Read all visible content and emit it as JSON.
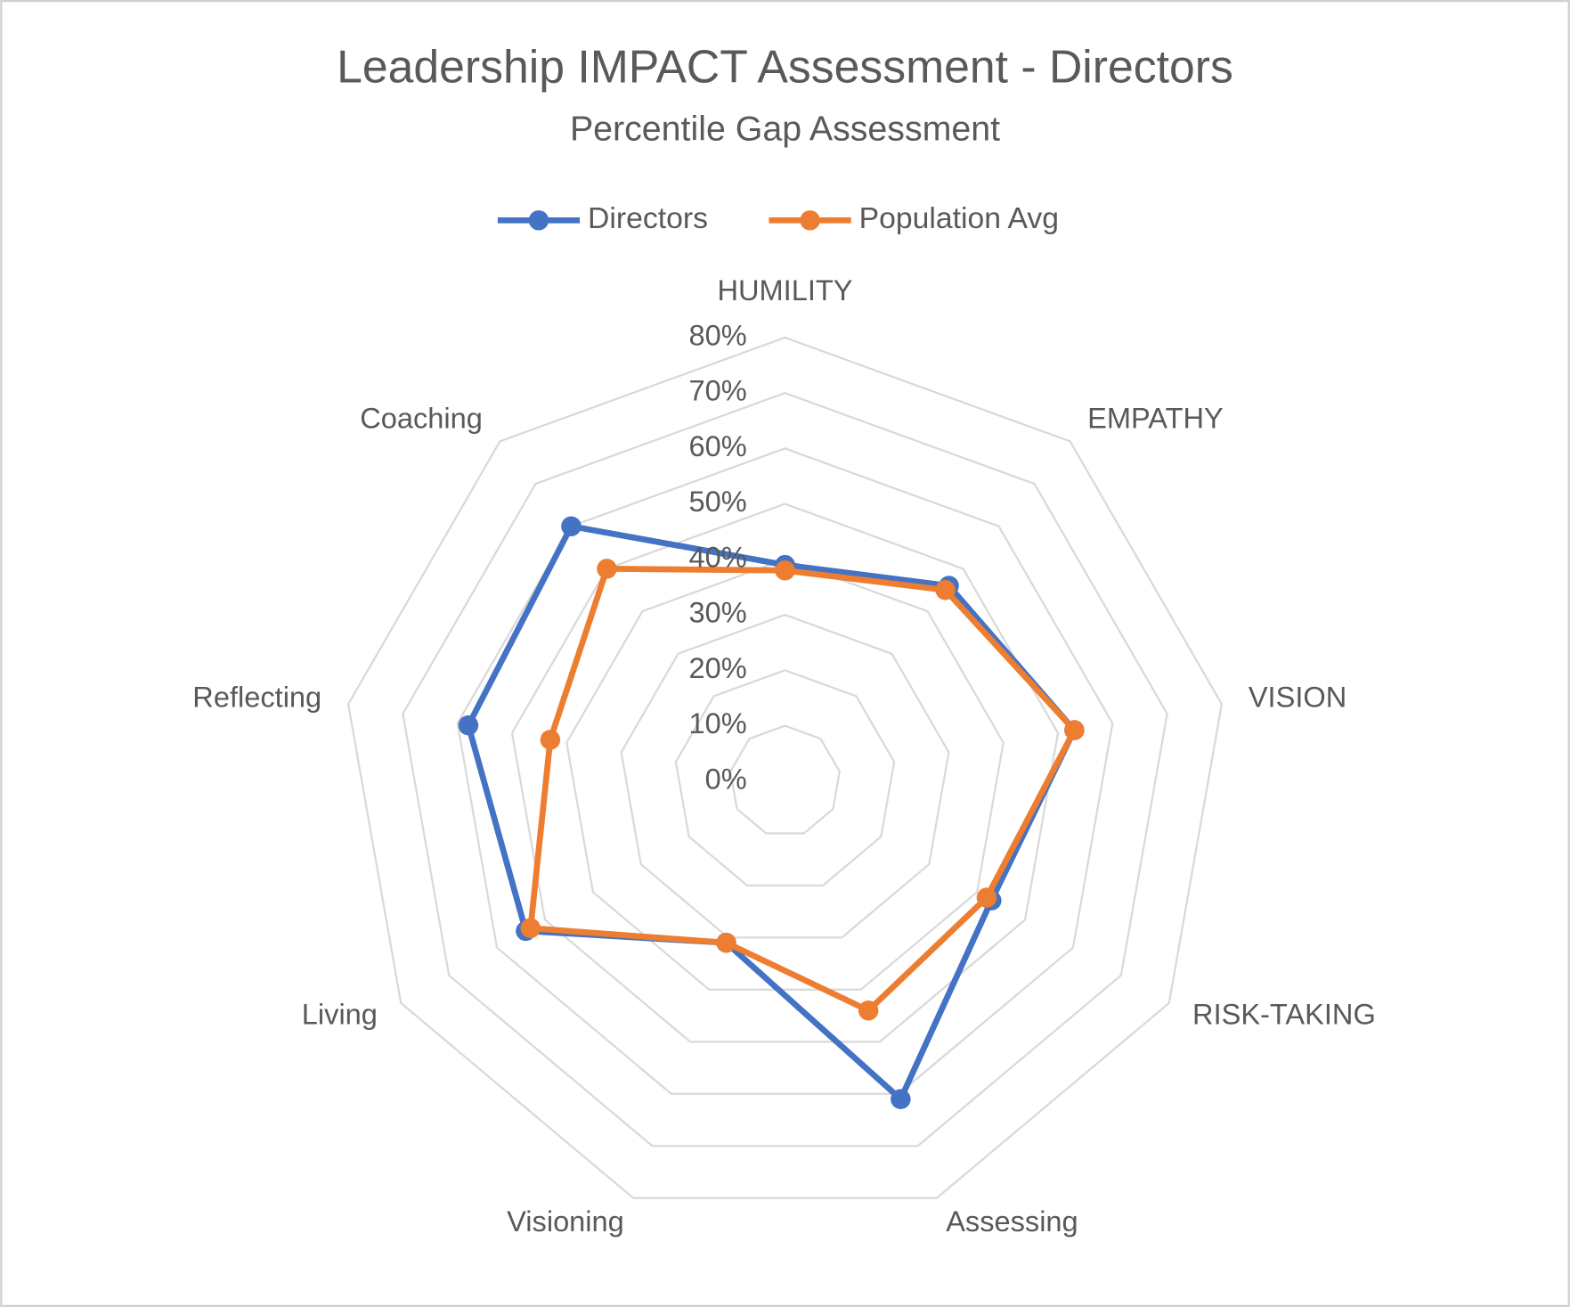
{
  "chart_data": {
    "type": "radar",
    "title": "Leadership IMPACT Assessment - Directors",
    "subtitle": "Percentile Gap Assessment",
    "categories": [
      "HUMILITY",
      "EMPATHY",
      "VISION",
      "RISK-TAKING",
      "Assessing",
      "Visioning",
      "Living",
      "Reflecting",
      "Coaching"
    ],
    "series": [
      {
        "name": "Directors",
        "color": "#4472c4",
        "values": [
          39,
          46,
          53,
          43,
          61,
          31,
          54,
          58,
          60
        ]
      },
      {
        "name": "Population Avg",
        "color": "#ed7d31",
        "values": [
          38,
          45,
          53,
          42,
          44,
          31,
          53,
          43,
          50
        ]
      }
    ],
    "ylim": [
      0,
      80
    ],
    "yticks": [
      {
        "value": 0,
        "label": "0%"
      },
      {
        "value": 10,
        "label": "10%"
      },
      {
        "value": 20,
        "label": "20%"
      },
      {
        "value": 30,
        "label": "30%"
      },
      {
        "value": 40,
        "label": "40%"
      },
      {
        "value": 50,
        "label": "50%"
      },
      {
        "value": 60,
        "label": "60%"
      },
      {
        "value": 70,
        "label": "70%"
      },
      {
        "value": 80,
        "label": "80%"
      }
    ],
    "grid": true,
    "legend": "top"
  }
}
